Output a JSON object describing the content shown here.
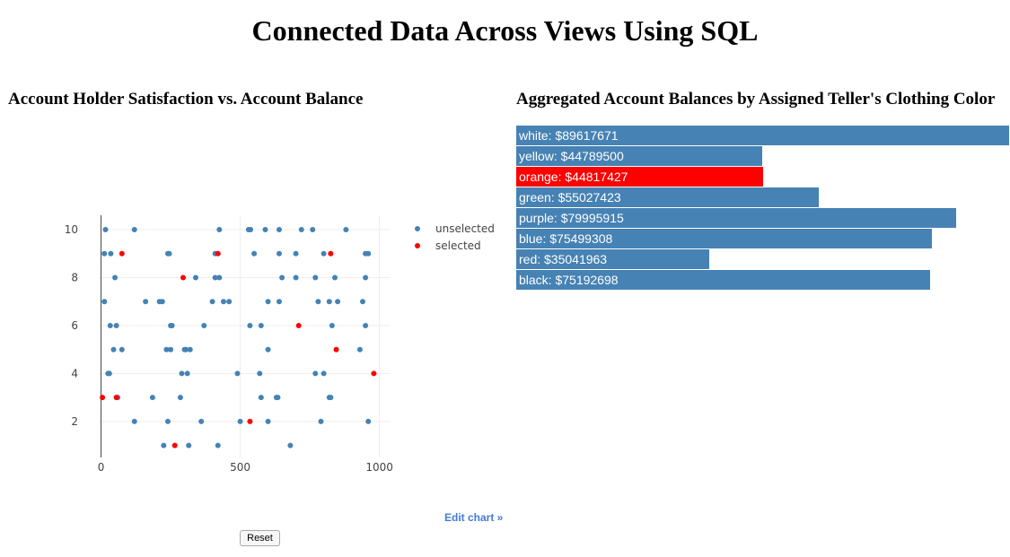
{
  "page": {
    "title": "Connected Data Across Views Using SQL"
  },
  "scatter": {
    "title": "Account Holder Satisfaction vs. Account Balance",
    "edit_link": "Edit chart »",
    "reset_label": "Reset"
  },
  "bars": {
    "title": "Aggregated Account Balances by Assigned Teller's Clothing Color"
  },
  "chart_data": [
    {
      "type": "scatter",
      "title": "Account Holder Satisfaction vs. Account Balance",
      "xlabel": "",
      "ylabel": "",
      "xlim": [
        -5,
        1040
      ],
      "ylim": [
        0.5,
        10.6
      ],
      "xticks": [
        0,
        500,
        1000
      ],
      "yticks": [
        2,
        4,
        6,
        8,
        10
      ],
      "grid": true,
      "legend_position": "top-right",
      "colors": {
        "unselected": "#4682b4",
        "selected": "#ff0000"
      },
      "series": [
        {
          "name": "unselected",
          "points": [
            [
              16,
              10
            ],
            [
              120,
              10
            ],
            [
              425,
              10
            ],
            [
              530,
              10
            ],
            [
              537,
              10
            ],
            [
              590,
              10
            ],
            [
              640,
              10
            ],
            [
              720,
              10
            ],
            [
              760,
              10
            ],
            [
              880,
              10
            ],
            [
              12,
              9
            ],
            [
              35,
              9
            ],
            [
              240,
              9
            ],
            [
              245,
              9
            ],
            [
              410,
              9
            ],
            [
              550,
              9
            ],
            [
              640,
              9
            ],
            [
              700,
              9
            ],
            [
              800,
              9
            ],
            [
              950,
              9
            ],
            [
              960,
              9
            ],
            [
              50,
              8
            ],
            [
              340,
              8
            ],
            [
              410,
              8
            ],
            [
              425,
              8
            ],
            [
              650,
              8
            ],
            [
              700,
              8
            ],
            [
              770,
              8
            ],
            [
              840,
              8
            ],
            [
              950,
              8
            ],
            [
              12,
              7
            ],
            [
              160,
              7
            ],
            [
              210,
              7
            ],
            [
              220,
              7
            ],
            [
              400,
              7
            ],
            [
              440,
              7
            ],
            [
              460,
              7
            ],
            [
              600,
              7
            ],
            [
              640,
              7
            ],
            [
              780,
              7
            ],
            [
              820,
              7
            ],
            [
              850,
              7
            ],
            [
              940,
              7
            ],
            [
              33,
              6
            ],
            [
              55,
              6
            ],
            [
              250,
              6
            ],
            [
              255,
              6
            ],
            [
              370,
              6
            ],
            [
              535,
              6
            ],
            [
              575,
              6
            ],
            [
              830,
              6
            ],
            [
              950,
              6
            ],
            [
              45,
              5
            ],
            [
              75,
              5
            ],
            [
              235,
              5
            ],
            [
              250,
              5
            ],
            [
              300,
              5
            ],
            [
              305,
              5
            ],
            [
              320,
              5
            ],
            [
              600,
              5
            ],
            [
              930,
              5
            ],
            [
              25,
              4
            ],
            [
              30,
              4
            ],
            [
              290,
              4
            ],
            [
              310,
              4
            ],
            [
              490,
              4
            ],
            [
              570,
              4
            ],
            [
              770,
              4
            ],
            [
              800,
              4
            ],
            [
              60,
              3
            ],
            [
              185,
              3
            ],
            [
              285,
              3
            ],
            [
              575,
              3
            ],
            [
              630,
              3
            ],
            [
              635,
              3
            ],
            [
              820,
              3
            ],
            [
              825,
              3
            ],
            [
              120,
              2
            ],
            [
              240,
              2
            ],
            [
              360,
              2
            ],
            [
              500,
              2
            ],
            [
              600,
              2
            ],
            [
              790,
              2
            ],
            [
              960,
              2
            ],
            [
              225,
              1
            ],
            [
              315,
              1
            ],
            [
              420,
              1
            ],
            [
              680,
              1
            ]
          ]
        },
        {
          "name": "selected",
          "points": [
            [
              75,
              9
            ],
            [
              420,
              9
            ],
            [
              825,
              9
            ],
            [
              295,
              8
            ],
            [
              710,
              6
            ],
            [
              845,
              5
            ],
            [
              980,
              4
            ],
            [
              5,
              3
            ],
            [
              55,
              3
            ],
            [
              265,
              1
            ],
            [
              535,
              2
            ]
          ]
        }
      ]
    },
    {
      "type": "bar",
      "orientation": "horizontal",
      "title": "Aggregated Account Balances by Assigned Teller's Clothing Color",
      "categories": [
        "white",
        "yellow",
        "orange",
        "green",
        "purple",
        "blue",
        "red",
        "black"
      ],
      "values": [
        89617671,
        44789500,
        44817427,
        55027423,
        79995915,
        75499308,
        35041963,
        75192698
      ],
      "labels": [
        "white: $89617671",
        "yellow: $44789500",
        "orange: $44817427",
        "green: $55027423",
        "purple: $79995915",
        "blue: $75499308",
        "red: $35041963",
        "black: $75192698"
      ],
      "highlighted": "orange",
      "colors": {
        "default": "#4682b4",
        "highlight": "#ff0000"
      }
    }
  ]
}
